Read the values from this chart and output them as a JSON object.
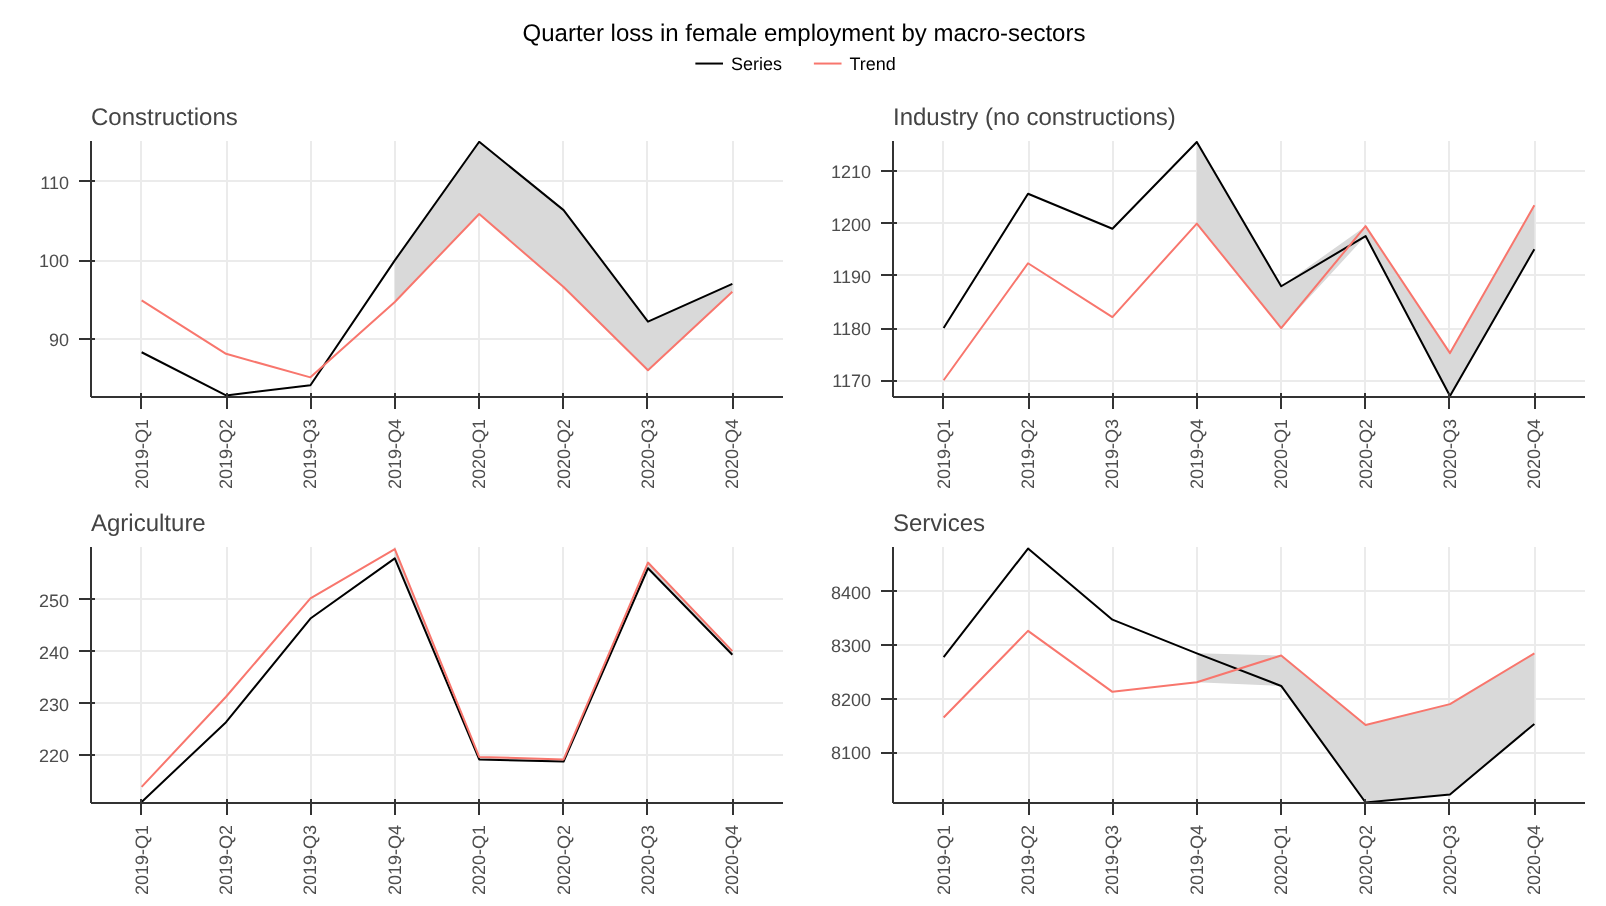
{
  "chart_data": [
    {
      "type": "other",
      "title": "Quarter loss in female employment by macro-sectors"
    },
    {
      "type": "line",
      "title": "Constructions",
      "categories": [
        "2019-Q1",
        "2019-Q2",
        "2019-Q3",
        "2019-Q4",
        "2020-Q1",
        "2020-Q2",
        "2020-Q3",
        "2020-Q4"
      ],
      "ylim": [
        82.6,
        115.2
      ],
      "yticks": [
        90,
        100,
        110
      ],
      "grid": true,
      "legend": "top",
      "series": [
        {
          "name": "Series",
          "color": "#000000",
          "values": [
            88.3,
            82.8,
            84.1,
            100,
            115.1,
            106.4,
            92.2,
            97.0
          ],
          "lower": [
            null,
            null,
            null,
            94.7,
            105.9,
            96.6,
            86.0,
            96.0
          ],
          "upper": [
            null,
            null,
            null,
            100,
            115.1,
            106.4,
            92.2,
            97.0
          ]
        },
        {
          "name": "Trend",
          "color": "#f8766d",
          "values": [
            94.9,
            88.1,
            85.1,
            94.7,
            105.9,
            96.6,
            86.0,
            96.0
          ]
        }
      ]
    },
    {
      "type": "line",
      "title": "Industry (no constructions)",
      "categories": [
        "2019-Q1",
        "2019-Q2",
        "2019-Q3",
        "2019-Q4",
        "2020-Q1",
        "2020-Q2",
        "2020-Q3",
        "2020-Q4"
      ],
      "ylim": [
        1166.8,
        1215.8
      ],
      "yticks": [
        1170,
        1180,
        1190,
        1200,
        1210
      ],
      "grid": true,
      "series": [
        {
          "color": "#000000",
          "values": [
            1180,
            1205.7,
            1199,
            1215.6,
            1188,
            1197.6,
            1167,
            1195.1
          ],
          "lower": [
            null,
            null,
            null,
            1200,
            1180,
            1197.6,
            1167,
            1195.1
          ],
          "upper": [
            null,
            null,
            null,
            1215.6,
            1188,
            1199.5,
            1175.2,
            1203.5
          ]
        },
        {
          "color": "#f8766d",
          "values": [
            1170,
            1192.4,
            1182.1,
            1200,
            1180,
            1199.5,
            1175.2,
            1203.5
          ]
        }
      ]
    },
    {
      "type": "line",
      "title": "Agriculture",
      "categories": [
        "2019-Q1",
        "2019-Q2",
        "2019-Q3",
        "2019-Q4",
        "2020-Q1",
        "2020-Q2",
        "2020-Q3",
        "2020-Q4"
      ],
      "ylim": [
        210.8,
        260.2
      ],
      "yticks": [
        220,
        230,
        240,
        250
      ],
      "grid": true,
      "series": [
        {
          "color": "#000000",
          "values": [
            211,
            226.4,
            246.4,
            258,
            219.2,
            218.8,
            256.1,
            239.4
          ],
          "lower": [
            null,
            null,
            null,
            258,
            219.2,
            218.8,
            256.1,
            239.4
          ],
          "upper": [
            null,
            null,
            null,
            259.8,
            219.7,
            219.2,
            257.2,
            240.1
          ]
        },
        {
          "color": "#f8766d",
          "values": [
            213.9,
            231.3,
            250.3,
            259.8,
            219.7,
            219.2,
            257.2,
            240.1
          ]
        }
      ]
    },
    {
      "type": "line",
      "title": "Services",
      "categories": [
        "2019-Q1",
        "2019-Q2",
        "2019-Q3",
        "2019-Q4",
        "2020-Q1",
        "2020-Q2",
        "2020-Q3",
        "2020-Q4"
      ],
      "ylim": [
        8005,
        8484
      ],
      "yticks": [
        8100,
        8200,
        8300,
        8400
      ],
      "grid": true,
      "series": [
        {
          "color": "#000000",
          "values": [
            8278,
            8481,
            8348,
            8285,
            8224,
            8006,
            8021,
            8153
          ],
          "lower": [
            null,
            null,
            null,
            8231,
            8224,
            8006,
            8021,
            8153
          ],
          "upper": [
            null,
            null,
            null,
            8285,
            8281,
            8151,
            8190,
            8285
          ]
        },
        {
          "color": "#f8766d",
          "values": [
            8165,
            8327,
            8213,
            8231,
            8281,
            8151,
            8190,
            8285
          ]
        }
      ]
    }
  ]
}
